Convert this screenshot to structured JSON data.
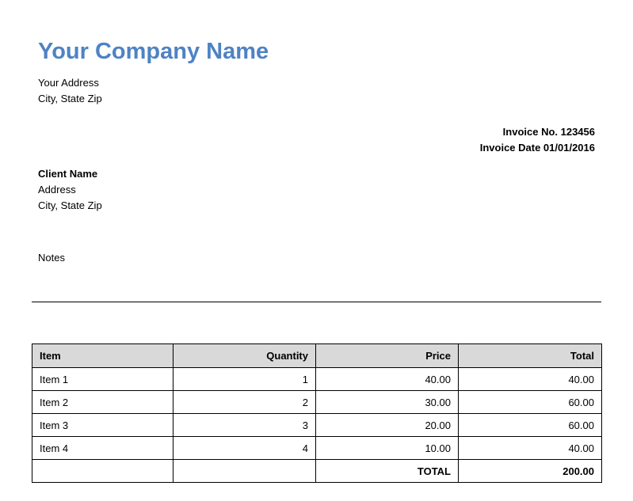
{
  "company": {
    "name": "Your Company Name",
    "address": "Your Address",
    "city_state_zip": "City, State Zip"
  },
  "invoice": {
    "number": "Invoice No. 123456",
    "date": "Invoice Date 01/01/2016"
  },
  "client": {
    "name": "Client Name",
    "address": "Address",
    "city_state_zip": "City, State Zip"
  },
  "notes": {
    "label": "Notes"
  },
  "table": {
    "headers": [
      "Item",
      "Quantity",
      "Price",
      "Total"
    ],
    "rows": [
      [
        "Item 1",
        "1",
        "40.00",
        "40.00"
      ],
      [
        "Item 2",
        "2",
        "30.00",
        "60.00"
      ],
      [
        "Item 3",
        "3",
        "20.00",
        "60.00"
      ],
      [
        "Item 4",
        "4",
        "10.00",
        "40.00"
      ]
    ],
    "footer": [
      "",
      "",
      "TOTAL",
      "200.00"
    ]
  },
  "colors": {
    "company_name": "#4e83c4",
    "table_header_bg": "#d9d9d9"
  }
}
